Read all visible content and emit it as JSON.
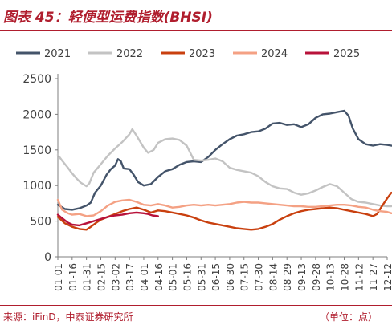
{
  "title": "图表 45：轻便型运费指数(BHSI)",
  "source": "来源：iFinD，中泰证券研究所",
  "unit": "（单位：点）",
  "chart_data": {
    "type": "line",
    "title": "",
    "xlabel": "",
    "ylabel": "",
    "ylim": [
      0,
      2500
    ],
    "yticks": [
      0,
      500,
      1000,
      1500,
      2000,
      2500
    ],
    "grid": false,
    "legend_position": "top",
    "x_ticks": [
      "01-01",
      "01-16",
      "01-31",
      "02-15",
      "03-02",
      "03-17",
      "04-01",
      "04-16",
      "05-01",
      "05-16",
      "05-31",
      "06-15",
      "06-30",
      "07-15",
      "07-30",
      "08-14",
      "08-29",
      "09-13",
      "09-28",
      "10-13",
      "10-28",
      "11-12",
      "11-27",
      "12-12"
    ],
    "series": [
      {
        "name": "2021",
        "color": "#44546a",
        "points": [
          [
            0,
            730
          ],
          [
            0.5,
            670
          ],
          [
            1,
            660
          ],
          [
            1.5,
            680
          ],
          [
            2,
            720
          ],
          [
            2.3,
            760
          ],
          [
            2.6,
            900
          ],
          [
            3,
            1000
          ],
          [
            3.4,
            1150
          ],
          [
            3.7,
            1230
          ],
          [
            4,
            1280
          ],
          [
            4.2,
            1370
          ],
          [
            4.4,
            1340
          ],
          [
            4.6,
            1240
          ],
          [
            5,
            1230
          ],
          [
            5.3,
            1150
          ],
          [
            5.6,
            1050
          ],
          [
            6,
            1000
          ],
          [
            6.5,
            1020
          ],
          [
            7,
            1120
          ],
          [
            7.5,
            1200
          ],
          [
            8,
            1230
          ],
          [
            8.5,
            1290
          ],
          [
            9,
            1330
          ],
          [
            9.5,
            1340
          ],
          [
            10,
            1330
          ],
          [
            10.5,
            1400
          ],
          [
            11,
            1500
          ],
          [
            11.5,
            1580
          ],
          [
            12,
            1650
          ],
          [
            12.5,
            1700
          ],
          [
            13,
            1720
          ],
          [
            13.5,
            1750
          ],
          [
            14,
            1760
          ],
          [
            14.5,
            1800
          ],
          [
            15,
            1870
          ],
          [
            15.5,
            1880
          ],
          [
            16,
            1850
          ],
          [
            16.5,
            1860
          ],
          [
            17,
            1820
          ],
          [
            17.5,
            1860
          ],
          [
            18,
            1950
          ],
          [
            18.5,
            2000
          ],
          [
            19,
            2010
          ],
          [
            19.5,
            2030
          ],
          [
            20,
            2050
          ],
          [
            20.3,
            1980
          ],
          [
            20.6,
            1800
          ],
          [
            21,
            1650
          ],
          [
            21.5,
            1580
          ],
          [
            22,
            1560
          ],
          [
            22.5,
            1580
          ],
          [
            23,
            1570
          ],
          [
            23.3,
            1560
          ]
        ]
      },
      {
        "name": "2022",
        "color": "#c3c3c3",
        "points": [
          [
            0,
            1430
          ],
          [
            0.3,
            1350
          ],
          [
            0.7,
            1250
          ],
          [
            1,
            1170
          ],
          [
            1.3,
            1100
          ],
          [
            1.6,
            1040
          ],
          [
            2,
            990
          ],
          [
            2.2,
            1030
          ],
          [
            2.5,
            1180
          ],
          [
            3,
            1300
          ],
          [
            3.5,
            1420
          ],
          [
            4,
            1520
          ],
          [
            4.5,
            1610
          ],
          [
            5,
            1720
          ],
          [
            5.2,
            1790
          ],
          [
            5.5,
            1700
          ],
          [
            6,
            1530
          ],
          [
            6.3,
            1460
          ],
          [
            6.7,
            1500
          ],
          [
            7,
            1600
          ],
          [
            7.5,
            1650
          ],
          [
            8,
            1660
          ],
          [
            8.5,
            1640
          ],
          [
            9,
            1560
          ],
          [
            9.5,
            1360
          ],
          [
            10,
            1350
          ],
          [
            10.5,
            1360
          ],
          [
            11,
            1380
          ],
          [
            11.5,
            1340
          ],
          [
            12,
            1250
          ],
          [
            12.5,
            1220
          ],
          [
            13,
            1200
          ],
          [
            13.5,
            1180
          ],
          [
            14,
            1130
          ],
          [
            14.5,
            1050
          ],
          [
            15,
            990
          ],
          [
            15.5,
            960
          ],
          [
            16,
            950
          ],
          [
            16.5,
            900
          ],
          [
            17,
            870
          ],
          [
            17.5,
            890
          ],
          [
            18,
            930
          ],
          [
            18.5,
            980
          ],
          [
            19,
            1020
          ],
          [
            19.5,
            990
          ],
          [
            20,
            900
          ],
          [
            20.5,
            810
          ],
          [
            21,
            770
          ],
          [
            21.5,
            760
          ],
          [
            22,
            740
          ],
          [
            22.5,
            720
          ],
          [
            23,
            710
          ],
          [
            23.3,
            710
          ]
        ]
      },
      {
        "name": "2023",
        "color": "#c9400f",
        "points": [
          [
            0,
            560
          ],
          [
            0.5,
            470
          ],
          [
            1,
            420
          ],
          [
            1.5,
            390
          ],
          [
            2,
            380
          ],
          [
            2.3,
            420
          ],
          [
            2.7,
            480
          ],
          [
            3,
            520
          ],
          [
            3.5,
            560
          ],
          [
            4,
            600
          ],
          [
            4.5,
            640
          ],
          [
            5,
            670
          ],
          [
            5.5,
            690
          ],
          [
            6,
            660
          ],
          [
            6.5,
            620
          ],
          [
            7,
            650
          ],
          [
            7.5,
            640
          ],
          [
            8,
            620
          ],
          [
            8.5,
            600
          ],
          [
            9,
            580
          ],
          [
            9.5,
            550
          ],
          [
            10,
            510
          ],
          [
            10.5,
            480
          ],
          [
            11,
            460
          ],
          [
            11.5,
            440
          ],
          [
            12,
            420
          ],
          [
            12.5,
            400
          ],
          [
            13,
            390
          ],
          [
            13.5,
            380
          ],
          [
            14,
            390
          ],
          [
            14.5,
            420
          ],
          [
            15,
            460
          ],
          [
            15.5,
            520
          ],
          [
            16,
            570
          ],
          [
            16.5,
            610
          ],
          [
            17,
            640
          ],
          [
            17.5,
            660
          ],
          [
            18,
            670
          ],
          [
            18.5,
            680
          ],
          [
            19,
            690
          ],
          [
            19.5,
            680
          ],
          [
            20,
            660
          ],
          [
            20.5,
            640
          ],
          [
            21,
            620
          ],
          [
            21.5,
            600
          ],
          [
            22,
            570
          ],
          [
            22.3,
            600
          ],
          [
            22.6,
            700
          ],
          [
            23,
            820
          ],
          [
            23.3,
            900
          ]
        ]
      },
      {
        "name": "2024",
        "color": "#f4a184",
        "points": [
          [
            0,
            800
          ],
          [
            0.3,
            660
          ],
          [
            0.7,
            610
          ],
          [
            1,
            590
          ],
          [
            1.5,
            600
          ],
          [
            2,
            570
          ],
          [
            2.5,
            580
          ],
          [
            3,
            640
          ],
          [
            3.5,
            720
          ],
          [
            4,
            770
          ],
          [
            4.5,
            790
          ],
          [
            5,
            800
          ],
          [
            5.5,
            770
          ],
          [
            6,
            730
          ],
          [
            6.5,
            720
          ],
          [
            7,
            740
          ],
          [
            7.5,
            720
          ],
          [
            8,
            690
          ],
          [
            8.5,
            700
          ],
          [
            9,
            720
          ],
          [
            9.5,
            730
          ],
          [
            10,
            720
          ],
          [
            10.5,
            730
          ],
          [
            11,
            720
          ],
          [
            11.5,
            730
          ],
          [
            12,
            740
          ],
          [
            12.5,
            760
          ],
          [
            13,
            770
          ],
          [
            13.5,
            760
          ],
          [
            14,
            760
          ],
          [
            14.5,
            750
          ],
          [
            15,
            740
          ],
          [
            15.5,
            730
          ],
          [
            16,
            720
          ],
          [
            16.5,
            710
          ],
          [
            17,
            710
          ],
          [
            17.5,
            700
          ],
          [
            18,
            700
          ],
          [
            18.5,
            710
          ],
          [
            19,
            720
          ],
          [
            19.5,
            730
          ],
          [
            20,
            730
          ],
          [
            20.5,
            720
          ],
          [
            21,
            700
          ],
          [
            21.5,
            690
          ],
          [
            22,
            660
          ],
          [
            22.5,
            640
          ],
          [
            23,
            630
          ],
          [
            23.3,
            610
          ]
        ]
      },
      {
        "name": "2025",
        "color": "#b8123a",
        "points": [
          [
            0,
            590
          ],
          [
            0.3,
            540
          ],
          [
            0.7,
            480
          ],
          [
            1,
            450
          ],
          [
            1.5,
            440
          ],
          [
            2,
            470
          ],
          [
            2.5,
            500
          ],
          [
            3,
            530
          ],
          [
            3.5,
            560
          ],
          [
            4,
            580
          ],
          [
            4.5,
            590
          ],
          [
            5,
            610
          ],
          [
            5.5,
            620
          ],
          [
            6,
            610
          ],
          [
            6.3,
            600
          ],
          [
            6.6,
            580
          ],
          [
            7,
            570
          ]
        ]
      }
    ]
  }
}
